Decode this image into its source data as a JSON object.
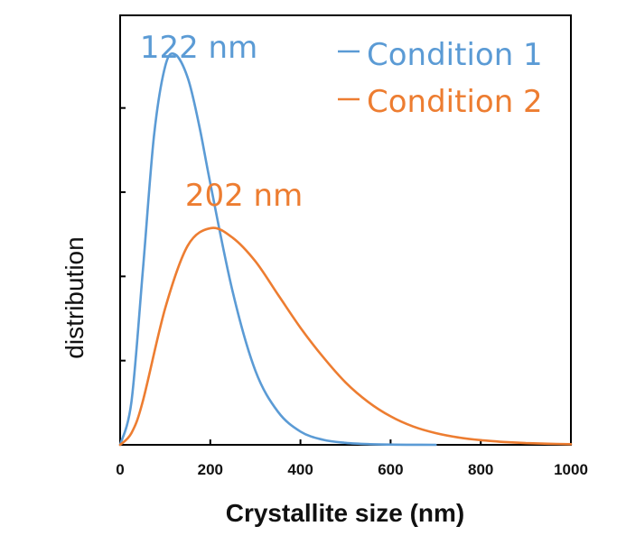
{
  "chart_data": {
    "type": "line",
    "title": "",
    "xlabel": "Crystallite size (nm)",
    "ylabel": "distribution",
    "xlim": [
      0,
      1000
    ],
    "ylim": [
      0,
      1.1
    ],
    "x_ticks": [
      "0",
      "200",
      "400",
      "600",
      "800",
      "1000"
    ],
    "y_ticks_labeled": false,
    "grid": false,
    "legend_position": "top-right",
    "series": [
      {
        "name": "Condition 1",
        "color": "#5b9bd5",
        "peak_x": 122,
        "peak_y": 1.0,
        "x": [
          0,
          25,
          50,
          75,
          100,
          122,
          150,
          175,
          200,
          250,
          300,
          350,
          400,
          450,
          500,
          550,
          600,
          650,
          700
        ],
        "y": [
          0,
          0.11,
          0.44,
          0.79,
          0.97,
          1.0,
          0.94,
          0.82,
          0.67,
          0.39,
          0.19,
          0.085,
          0.034,
          0.013,
          0.005,
          0.0018,
          0.0006,
          0.0002,
          0.0
        ]
      },
      {
        "name": "Condition 2",
        "color": "#ed7d31",
        "peak_x": 202,
        "peak_y": 0.555,
        "x": [
          0,
          25,
          50,
          100,
          150,
          202,
          250,
          300,
          350,
          400,
          450,
          500,
          550,
          600,
          650,
          700,
          750,
          800,
          850,
          900,
          950,
          1000
        ],
        "y": [
          0,
          0.03,
          0.11,
          0.35,
          0.51,
          0.555,
          0.53,
          0.47,
          0.385,
          0.3,
          0.225,
          0.16,
          0.11,
          0.073,
          0.047,
          0.03,
          0.019,
          0.012,
          0.0075,
          0.0045,
          0.0027,
          0.0016
        ]
      }
    ],
    "annotations": [
      {
        "text": "122 nm",
        "series": 0
      },
      {
        "text": "202 nm",
        "series": 1
      }
    ]
  }
}
